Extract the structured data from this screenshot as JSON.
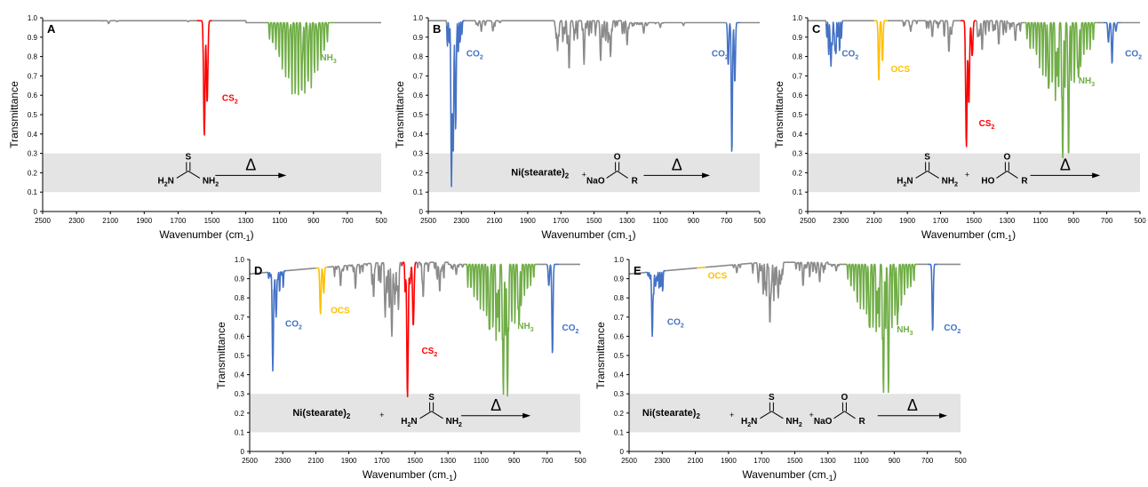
{
  "colors": {
    "background_trace": "#8a8a8a",
    "CO2": "#4472c4",
    "CS2": "#ff0000",
    "NH3": "#70ad47",
    "OCS": "#ffc000",
    "scheme_band": "#e4e4e4",
    "axis": "#000000"
  },
  "chart_data": [
    {
      "panel": "A",
      "type": "line",
      "xlabel": "Wavenumber (cm-1)",
      "ylabel": "Transmittance",
      "xlim": [
        2500,
        500
      ],
      "ylim": [
        0,
        1.0
      ],
      "x_reversed": true,
      "x_ticks": [
        2500,
        2300,
        2100,
        1900,
        1700,
        1500,
        1300,
        1100,
        900,
        700,
        500
      ],
      "y_ticks": [
        "0",
        "0.1",
        "0.2",
        "0.3",
        "0.4",
        "0.5",
        "0.6",
        "0.7",
        "0.8",
        "0.9",
        "1.0"
      ],
      "grid": false,
      "scheme_band": [
        0.1,
        0.3
      ],
      "series": [
        {
          "name": "CS2",
          "regions": [
            [
              1590,
              1500
            ]
          ],
          "peaks": [
            [
              1545,
              0.39
            ],
            [
              1528,
              0.56
            ]
          ]
        },
        {
          "name": "NH3",
          "regions": [
            [
              1180,
              780
            ]
          ],
          "peaks": [
            [
              965,
              0.8
            ],
            [
              930,
              0.85
            ],
            [
              1040,
              0.94
            ],
            [
              880,
              0.95
            ]
          ]
        }
      ],
      "background_peaks": [
        [
          2110,
          0.97
        ],
        [
          2060,
          0.98
        ],
        [
          1640,
          0.98
        ]
      ],
      "annotations": [
        {
          "text": "CS2",
          "x": 1440,
          "y": 0.57
        },
        {
          "text": "NH3",
          "x": 860,
          "y": 0.78
        }
      ],
      "scheme": "thiourea"
    },
    {
      "panel": "B",
      "type": "line",
      "xlabel": "Wavenumber (cm-1)",
      "ylabel": "Transmittance",
      "xlim": [
        2500,
        500
      ],
      "ylim": [
        0,
        1.0
      ],
      "x_reversed": true,
      "x_ticks": [
        2500,
        2300,
        2100,
        1900,
        1700,
        1500,
        1300,
        1100,
        900,
        700,
        500
      ],
      "y_ticks": [
        "0",
        "0.1",
        "0.2",
        "0.3",
        "0.4",
        "0.5",
        "0.6",
        "0.7",
        "0.8",
        "0.9",
        "1.0"
      ],
      "grid": false,
      "scheme_band": [
        0.1,
        0.3
      ],
      "series": [
        {
          "name": "CO2",
          "regions": [
            [
              2390,
              2280
            ],
            [
              700,
              620
            ]
          ],
          "peaks": [
            [
              2360,
              0.13
            ],
            [
              2335,
              0.42
            ],
            [
              2350,
              0.28
            ],
            [
              668,
              0.29
            ],
            [
              690,
              0.75
            ],
            [
              650,
              0.66
            ]
          ]
        }
      ],
      "background_peaks": [
        [
          2180,
          0.93
        ],
        [
          2110,
          0.93
        ],
        [
          1720,
          0.83
        ],
        [
          1650,
          0.73
        ],
        [
          1560,
          0.76
        ],
        [
          1460,
          0.78
        ],
        [
          1400,
          0.8
        ],
        [
          1300,
          0.86
        ],
        [
          1200,
          0.92
        ],
        [
          1100,
          0.95
        ],
        [
          960,
          0.96
        ]
      ],
      "annotations": [
        {
          "text": "CO2",
          "x": 2270,
          "y": 0.8
        },
        {
          "text": "CO2",
          "x": 790,
          "y": 0.8
        }
      ],
      "scheme": "nickel_stearate_sodium_carboxylate"
    },
    {
      "panel": "C",
      "type": "line",
      "xlabel": "Wavenumber (cm-1)",
      "ylabel": "Transmittance",
      "xlim": [
        2500,
        500
      ],
      "ylim": [
        0,
        1.0
      ],
      "x_reversed": true,
      "x_ticks": [
        2500,
        2300,
        2100,
        1900,
        1700,
        1500,
        1300,
        1100,
        900,
        700,
        500
      ],
      "y_ticks": [
        "0",
        "0.1",
        "0.2",
        "0.3",
        "0.4",
        "0.5",
        "0.6",
        "0.7",
        "0.8",
        "0.9",
        "1.0"
      ],
      "grid": false,
      "scheme_band": [
        0.1,
        0.3
      ],
      "series": [
        {
          "name": "CO2",
          "regions": [
            [
              2390,
              2290
            ],
            [
              720,
              620
            ]
          ],
          "peaks": [
            [
              2360,
              0.75
            ],
            [
              2335,
              0.83
            ],
            [
              690,
              0.87
            ],
            [
              668,
              0.76
            ],
            [
              645,
              0.93
            ]
          ]
        },
        {
          "name": "OCS",
          "regions": [
            [
              2100,
              2020
            ]
          ],
          "peaks": [
            [
              2072,
              0.67
            ],
            [
              2050,
              0.77
            ]
          ]
        },
        {
          "name": "CS2",
          "regions": [
            [
              1580,
              1490
            ]
          ],
          "peaks": [
            [
              1545,
              0.33
            ],
            [
              1530,
              0.55
            ],
            [
              1510,
              0.8
            ]
          ]
        },
        {
          "name": "NH3",
          "regions": [
            [
              1200,
              760
            ]
          ],
          "peaks": [
            [
              965,
              0.27
            ],
            [
              930,
              0.27
            ],
            [
              1050,
              0.62
            ],
            [
              870,
              0.68
            ],
            [
              1000,
              0.7
            ]
          ]
        }
      ],
      "background_peaks": [
        [
          1880,
          0.93
        ],
        [
          1750,
          0.9
        ],
        [
          1650,
          0.82
        ],
        [
          1450,
          0.83
        ],
        [
          1350,
          0.86
        ],
        [
          1250,
          0.88
        ]
      ],
      "annotations": [
        {
          "text": "CO2",
          "x": 2295,
          "y": 0.8
        },
        {
          "text": "OCS",
          "x": 2000,
          "y": 0.72
        },
        {
          "text": "CS2",
          "x": 1470,
          "y": 0.44
        },
        {
          "text": "NH3",
          "x": 870,
          "y": 0.66
        },
        {
          "text": "CO2",
          "x": 590,
          "y": 0.8
        }
      ],
      "scheme": "thiourea_carboxylic_acid"
    },
    {
      "panel": "D",
      "type": "line",
      "xlabel": "Wavenumber (cm-1)",
      "ylabel": "Transmittance",
      "xlim": [
        2500,
        500
      ],
      "ylim": [
        0,
        1.0
      ],
      "x_reversed": true,
      "x_ticks": [
        2500,
        2300,
        2100,
        1900,
        1700,
        1500,
        1300,
        1100,
        900,
        700,
        500
      ],
      "y_ticks": [
        "0",
        "0.1",
        "0.2",
        "0.3",
        "0.4",
        "0.5",
        "0.6",
        "0.7",
        "0.8",
        "0.9",
        "1.0"
      ],
      "grid": false,
      "scheme_band": [
        0.1,
        0.3
      ],
      "series": [
        {
          "name": "CO2",
          "regions": [
            [
              2400,
              2280
            ],
            [
              700,
              630
            ]
          ],
          "peaks": [
            [
              2360,
              0.42
            ],
            [
              2340,
              0.7
            ],
            [
              668,
              0.5
            ],
            [
              690,
              0.86
            ]
          ]
        },
        {
          "name": "OCS",
          "regions": [
            [
              2100,
              2030
            ]
          ],
          "peaks": [
            [
              2072,
              0.71
            ],
            [
              2052,
              0.82
            ]
          ]
        },
        {
          "name": "CS2",
          "regions": [
            [
              1580,
              1490
            ]
          ],
          "peaks": [
            [
              1545,
              0.28
            ],
            [
              1530,
              0.87
            ],
            [
              1510,
              0.65
            ]
          ]
        },
        {
          "name": "NH3",
          "regions": [
            [
              1200,
              760
            ]
          ],
          "peaks": [
            [
              965,
              0.29
            ],
            [
              940,
              0.29
            ],
            [
              1050,
              0.62
            ],
            [
              870,
              0.65
            ],
            [
              1000,
              0.7
            ]
          ]
        }
      ],
      "background_peaks": [
        [
          1950,
          0.86
        ],
        [
          1860,
          0.85
        ],
        [
          1750,
          0.8
        ],
        [
          1680,
          0.7
        ],
        [
          1640,
          0.6
        ],
        [
          1600,
          0.74
        ],
        [
          1450,
          0.8
        ],
        [
          1350,
          0.83
        ],
        [
          1250,
          0.92
        ]
      ],
      "annotations": [
        {
          "text": "CO2",
          "x": 2285,
          "y": 0.65
        },
        {
          "text": "OCS",
          "x": 2010,
          "y": 0.72
        },
        {
          "text": "CS2",
          "x": 1460,
          "y": 0.51
        },
        {
          "text": "NH3",
          "x": 880,
          "y": 0.64
        },
        {
          "text": "CO2",
          "x": 610,
          "y": 0.63
        }
      ],
      "scheme": "nickel_stearate_thiourea"
    },
    {
      "panel": "E",
      "type": "line",
      "xlabel": "Wavenumber (cm-1)",
      "ylabel": "Transmittance",
      "xlim": [
        2500,
        500
      ],
      "ylim": [
        0,
        1.0
      ],
      "x_reversed": true,
      "x_ticks": [
        2500,
        2300,
        2100,
        1900,
        1700,
        1500,
        1300,
        1100,
        900,
        700,
        500
      ],
      "y_ticks": [
        "0",
        "0.1",
        "0.2",
        "0.3",
        "0.4",
        "0.5",
        "0.6",
        "0.7",
        "0.8",
        "0.9",
        "1.0"
      ],
      "grid": false,
      "scheme_band": [
        0.1,
        0.3
      ],
      "series": [
        {
          "name": "CO2",
          "regions": [
            [
              2400,
              2280
            ],
            [
              700,
              640
            ]
          ],
          "peaks": [
            [
              2360,
              0.6
            ],
            [
              2340,
              0.86
            ],
            [
              668,
              0.62
            ]
          ]
        },
        {
          "name": "OCS",
          "regions": [
            [
              2090,
              2040
            ]
          ],
          "peaks": [
            [
              2070,
              0.96
            ]
          ]
        },
        {
          "name": "NH3",
          "regions": [
            [
              1200,
              760
            ]
          ],
          "peaks": [
            [
              965,
              0.3
            ],
            [
              935,
              0.3
            ],
            [
              1050,
              0.64
            ],
            [
              880,
              0.66
            ],
            [
              1000,
              0.72
            ]
          ]
        }
      ],
      "background_peaks": [
        [
          1850,
          0.93
        ],
        [
          1720,
          0.88
        ],
        [
          1650,
          0.66
        ],
        [
          1600,
          0.8
        ],
        [
          1450,
          0.86
        ],
        [
          1350,
          0.88
        ],
        [
          1250,
          0.94
        ]
      ],
      "annotations": [
        {
          "text": "CO2",
          "x": 2270,
          "y": 0.66
        },
        {
          "text": "OCS",
          "x": 2025,
          "y": 0.9
        },
        {
          "text": "NH3",
          "x": 885,
          "y": 0.62
        },
        {
          "text": "CO2",
          "x": 600,
          "y": 0.63
        }
      ],
      "scheme": "nickel_stearate_thiourea_sodium_carboxylate"
    }
  ],
  "scheme_labels": {
    "nickel": "Ni(stearate)",
    "nickel_subscript": "2",
    "plus": "+",
    "delta": "Δ",
    "S": "S",
    "O": "O",
    "H2N_left": "H",
    "N": "N",
    "NH": "NH",
    "two": "2",
    "NaO": "NaO",
    "HO": "HO",
    "R": "R"
  }
}
